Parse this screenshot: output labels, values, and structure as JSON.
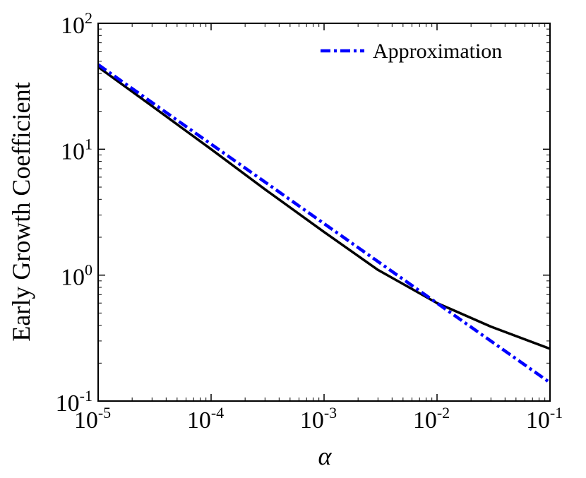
{
  "chart_data": {
    "type": "line",
    "title": "",
    "xlabel": "α",
    "ylabel": "Early Growth Coefficient",
    "xscale": "log",
    "yscale": "log",
    "xlim": [
      1e-05,
      0.1
    ],
    "ylim": [
      0.1,
      100
    ],
    "x_tick_labels": [
      {
        "base": "10",
        "exp": "-5"
      },
      {
        "base": "10",
        "exp": "-4"
      },
      {
        "base": "10",
        "exp": "-3"
      },
      {
        "base": "10",
        "exp": "-2"
      },
      {
        "base": "10",
        "exp": "-1"
      }
    ],
    "y_tick_labels": [
      {
        "base": "10",
        "exp": "-1"
      },
      {
        "base": "10",
        "exp": "0"
      },
      {
        "base": "10",
        "exp": "1"
      },
      {
        "base": "10",
        "exp": "2"
      }
    ],
    "x_tick_values": [
      1e-05,
      0.0001,
      0.001,
      0.01,
      0.1
    ],
    "y_tick_values": [
      0.1,
      1,
      10,
      100
    ],
    "grid": false,
    "legend_position": "top-right",
    "series": [
      {
        "color": "#000000",
        "style": "solid",
        "x": [
          1e-05,
          3e-05,
          0.0001,
          0.0003,
          0.001,
          0.003,
          0.01,
          0.03,
          0.1
        ],
        "y": [
          45,
          22,
          10,
          4.8,
          2.2,
          1.1,
          0.6,
          0.39,
          0.26
        ]
      },
      {
        "name": "Approximation",
        "color": "#0000ff",
        "style": "dashdot",
        "x": [
          1e-05,
          0.1
        ],
        "y": [
          47,
          0.14
        ]
      }
    ]
  }
}
